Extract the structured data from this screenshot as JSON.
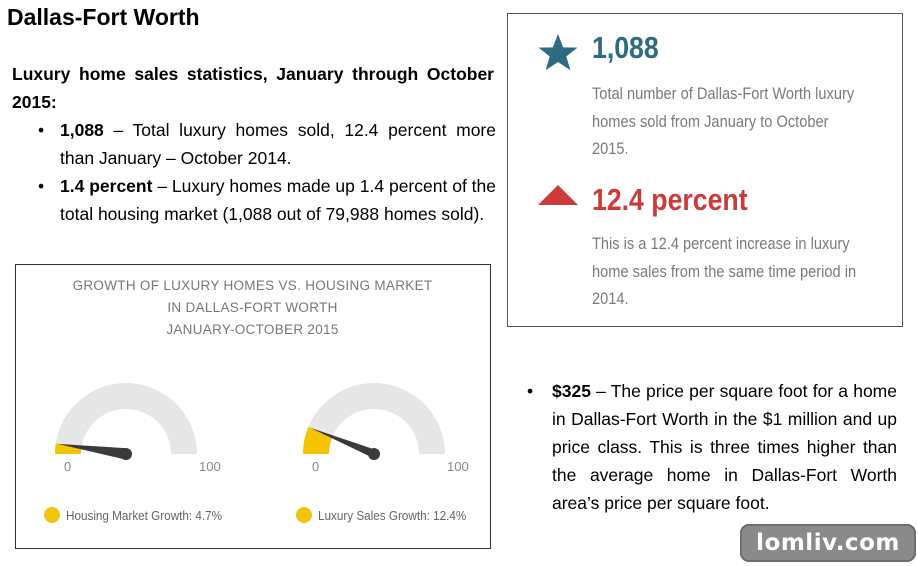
{
  "title": "Dallas-Fort Worth",
  "intro": {
    "heading": "Luxury home sales statistics, January through October 2015:",
    "bullets": [
      {
        "bold": "1,088",
        "text": " – Total luxury homes sold, 12.4 percent more than January – October 2014."
      },
      {
        "bold": "1.4 percent",
        "text": " – Luxury homes made up 1.4 percent of the total housing market (1,088 out of 79,988 homes sold)."
      }
    ]
  },
  "stats": [
    {
      "icon": "star-icon",
      "value": "1,088",
      "color": "#2e6a80",
      "description": "Total number of Dallas-Fort Worth luxury homes sold from January to October 2015."
    },
    {
      "icon": "up-triangle-icon",
      "value": "12.4 percent",
      "color": "#cc3a3a",
      "description": "This is a 12.4 percent increase in luxury home sales from the same time period in 2014."
    }
  ],
  "chart": {
    "title_lines": [
      "GROWTH OF LUXURY HOMES VS. HOUSING MARKET",
      "IN DALLAS-FORT WORTH",
      "JANUARY-OCTOBER 2015"
    ],
    "gauge_min_label": "0",
    "gauge_max_label": "100",
    "fill_color": "#f5c400",
    "track_color": "#e6e6e6",
    "needle_color": "#3a3a3a"
  },
  "chart_data": {
    "type": "gauge",
    "min": 0,
    "max": 100,
    "series": [
      {
        "name": "Housing Market Growth: 4.7%",
        "value": 4.7
      },
      {
        "name": "Luxury Sales Growth: 12.4%",
        "value": 12.4
      }
    ]
  },
  "bullet2": {
    "bold": "$325",
    "text": " – The price per square foot for a home in Dallas-Fort Worth in the $1 million and up price class. This is three times higher than the average home in Dallas-Fort Worth area’s price per square foot."
  },
  "watermark": "lomliv.com"
}
